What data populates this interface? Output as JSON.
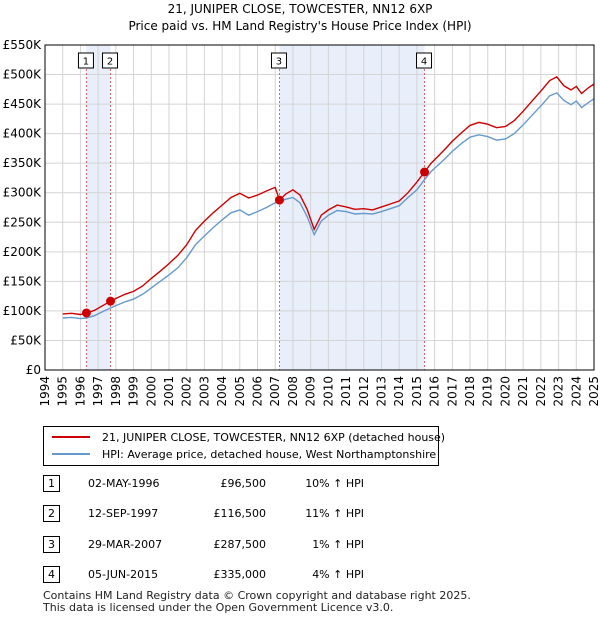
{
  "chart_data": {
    "type": "line",
    "title": "21, JUNIPER CLOSE, TOWCESTER, NN12 6XP",
    "subtitle": "Price paid vs. HM Land Registry's House Price Index (HPI)",
    "xlim": [
      1994,
      2025
    ],
    "ylim": [
      0,
      550000
    ],
    "x_ticks": [
      "1994",
      "1995",
      "1996",
      "1997",
      "1998",
      "1999",
      "2000",
      "2001",
      "2002",
      "2003",
      "2004",
      "2005",
      "2006",
      "2007",
      "2008",
      "2009",
      "2010",
      "2011",
      "2012",
      "2013",
      "2014",
      "2015",
      "2016",
      "2017",
      "2018",
      "2019",
      "2020",
      "2021",
      "2022",
      "2023",
      "2024",
      "2025"
    ],
    "y_ticks": [
      "£0",
      "£50K",
      "£100K",
      "£150K",
      "£200K",
      "£250K",
      "£300K",
      "£350K",
      "£400K",
      "£450K",
      "£500K",
      "£550K"
    ],
    "series": [
      {
        "name": "21, JUNIPER CLOSE, TOWCESTER, NN12 6XP (detached house)",
        "color": "#cc0000",
        "points": [
          [
            1995.0,
            95000
          ],
          [
            1995.5,
            96000
          ],
          [
            1996.0,
            94000
          ],
          [
            1996.34,
            96500
          ],
          [
            1996.8,
            101000
          ],
          [
            1997.2,
            108000
          ],
          [
            1997.7,
            116500
          ],
          [
            1998.0,
            121000
          ],
          [
            1998.5,
            128000
          ],
          [
            1999.0,
            133000
          ],
          [
            1999.5,
            142000
          ],
          [
            2000.0,
            155000
          ],
          [
            2000.5,
            167000
          ],
          [
            2001.0,
            180000
          ],
          [
            2001.5,
            194000
          ],
          [
            2002.0,
            212000
          ],
          [
            2002.5,
            236000
          ],
          [
            2003.0,
            252000
          ],
          [
            2003.5,
            266000
          ],
          [
            2004.0,
            279000
          ],
          [
            2004.5,
            292000
          ],
          [
            2005.0,
            299000
          ],
          [
            2005.5,
            291000
          ],
          [
            2006.0,
            296000
          ],
          [
            2006.5,
            303000
          ],
          [
            2007.0,
            309000
          ],
          [
            2007.24,
            287500
          ],
          [
            2007.6,
            298000
          ],
          [
            2008.0,
            305000
          ],
          [
            2008.4,
            296000
          ],
          [
            2008.8,
            272000
          ],
          [
            2009.2,
            238000
          ],
          [
            2009.6,
            262000
          ],
          [
            2010.0,
            271000
          ],
          [
            2010.5,
            279000
          ],
          [
            2011.0,
            276000
          ],
          [
            2011.5,
            272000
          ],
          [
            2012.0,
            273000
          ],
          [
            2012.5,
            271000
          ],
          [
            2013.0,
            276000
          ],
          [
            2013.5,
            281000
          ],
          [
            2014.0,
            286000
          ],
          [
            2014.5,
            300000
          ],
          [
            2015.0,
            318000
          ],
          [
            2015.43,
            335000
          ],
          [
            2015.8,
            350000
          ],
          [
            2016.2,
            362000
          ],
          [
            2016.6,
            374000
          ],
          [
            2017.0,
            387000
          ],
          [
            2017.5,
            401000
          ],
          [
            2018.0,
            414000
          ],
          [
            2018.5,
            419000
          ],
          [
            2019.0,
            416000
          ],
          [
            2019.5,
            410000
          ],
          [
            2020.0,
            412000
          ],
          [
            2020.5,
            422000
          ],
          [
            2021.0,
            438000
          ],
          [
            2021.5,
            455000
          ],
          [
            2022.0,
            472000
          ],
          [
            2022.5,
            490000
          ],
          [
            2022.9,
            496000
          ],
          [
            2023.3,
            481000
          ],
          [
            2023.7,
            474000
          ],
          [
            2024.0,
            480000
          ],
          [
            2024.3,
            468000
          ],
          [
            2024.7,
            478000
          ],
          [
            2025.0,
            484000
          ]
        ]
      },
      {
        "name": "HPI: Average price, detached house, West Northamptonshire",
        "color": "#6699cc",
        "points": [
          [
            1995.0,
            88000
          ],
          [
            1995.5,
            89000
          ],
          [
            1996.0,
            87000
          ],
          [
            1996.34,
            88000
          ],
          [
            1996.8,
            92000
          ],
          [
            1997.2,
            98000
          ],
          [
            1997.7,
            105000
          ],
          [
            1998.0,
            109000
          ],
          [
            1998.5,
            115000
          ],
          [
            1999.0,
            120000
          ],
          [
            1999.5,
            128000
          ],
          [
            2000.0,
            139000
          ],
          [
            2000.5,
            150000
          ],
          [
            2001.0,
            161000
          ],
          [
            2001.5,
            173000
          ],
          [
            2002.0,
            190000
          ],
          [
            2002.5,
            212000
          ],
          [
            2003.0,
            227000
          ],
          [
            2003.5,
            241000
          ],
          [
            2004.0,
            254000
          ],
          [
            2004.5,
            266000
          ],
          [
            2005.0,
            271000
          ],
          [
            2005.5,
            262000
          ],
          [
            2006.0,
            268000
          ],
          [
            2006.5,
            275000
          ],
          [
            2007.0,
            283000
          ],
          [
            2007.24,
            285000
          ],
          [
            2007.6,
            289000
          ],
          [
            2008.0,
            292000
          ],
          [
            2008.4,
            283000
          ],
          [
            2008.8,
            260000
          ],
          [
            2009.2,
            229000
          ],
          [
            2009.6,
            252000
          ],
          [
            2010.0,
            262000
          ],
          [
            2010.5,
            270000
          ],
          [
            2011.0,
            268000
          ],
          [
            2011.5,
            264000
          ],
          [
            2012.0,
            265000
          ],
          [
            2012.5,
            264000
          ],
          [
            2013.0,
            268000
          ],
          [
            2013.5,
            273000
          ],
          [
            2014.0,
            278000
          ],
          [
            2014.5,
            292000
          ],
          [
            2015.0,
            305000
          ],
          [
            2015.43,
            322000
          ],
          [
            2015.8,
            336000
          ],
          [
            2016.2,
            347000
          ],
          [
            2016.6,
            358000
          ],
          [
            2017.0,
            370000
          ],
          [
            2017.5,
            383000
          ],
          [
            2018.0,
            394000
          ],
          [
            2018.5,
            398000
          ],
          [
            2019.0,
            395000
          ],
          [
            2019.5,
            389000
          ],
          [
            2020.0,
            391000
          ],
          [
            2020.5,
            400000
          ],
          [
            2021.0,
            415000
          ],
          [
            2021.5,
            431000
          ],
          [
            2022.0,
            447000
          ],
          [
            2022.5,
            464000
          ],
          [
            2022.9,
            469000
          ],
          [
            2023.3,
            456000
          ],
          [
            2023.7,
            449000
          ],
          [
            2024.0,
            455000
          ],
          [
            2024.3,
            444000
          ],
          [
            2024.7,
            453000
          ],
          [
            2025.0,
            459000
          ]
        ]
      }
    ],
    "shaded_periods": [
      [
        1996.34,
        1997.7
      ],
      [
        2007.24,
        2015.43
      ]
    ],
    "sales": [
      {
        "label": "1",
        "date": "02-MAY-1996",
        "price": "£96,500",
        "hpi": "10% ↑ HPI",
        "x": 1996.34,
        "y": 96500
      },
      {
        "label": "2",
        "date": "12-SEP-1997",
        "price": "£116,500",
        "hpi": "11% ↑ HPI",
        "x": 1997.7,
        "y": 116500
      },
      {
        "label": "3",
        "date": "29-MAR-2007",
        "price": "£287,500",
        "hpi": "1% ↑ HPI",
        "x": 2007.24,
        "y": 287500
      },
      {
        "label": "4",
        "date": "05-JUN-2015",
        "price": "£335,000",
        "hpi": "4% ↑ HPI",
        "x": 2015.43,
        "y": 335000
      }
    ]
  },
  "legend": [
    {
      "label": "21, JUNIPER CLOSE, TOWCESTER, NN12 6XP (detached house)",
      "color": "#cc0000"
    },
    {
      "label": "HPI: Average price, detached house, West Northamptonshire",
      "color": "#6699cc"
    }
  ],
  "footer": {
    "line1": "Contains HM Land Registry data © Crown copyright and database right 2025.",
    "line2": "This data is licensed under the Open Government Licence v3.0."
  }
}
